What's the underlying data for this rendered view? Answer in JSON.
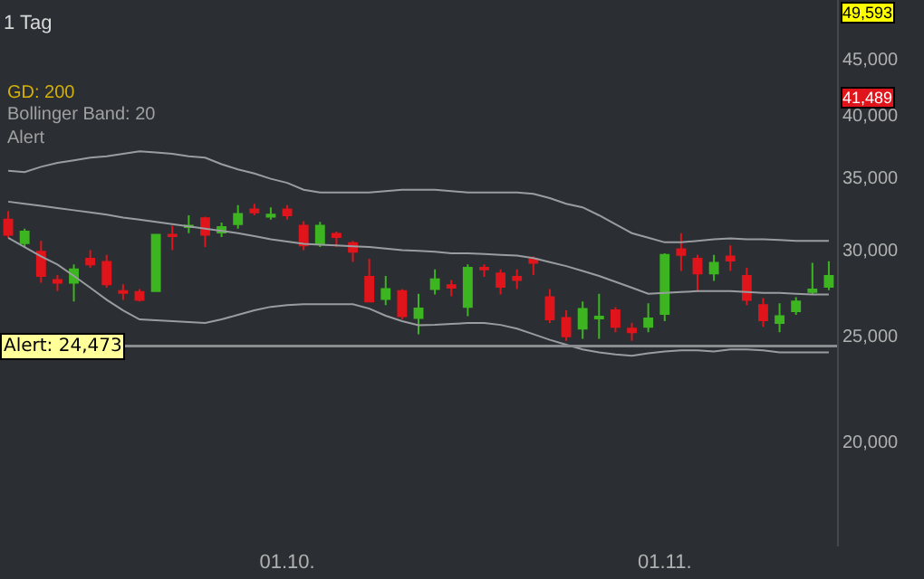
{
  "chart_data": {
    "type": "candlestick",
    "subtitle": "1 Tag",
    "categories": [
      null,
      null,
      null,
      null,
      null,
      null,
      null,
      null,
      null,
      null,
      null,
      null,
      null,
      null,
      null,
      null,
      null,
      "01.10.",
      null,
      null,
      null,
      null,
      null,
      null,
      null,
      null,
      null,
      null,
      null,
      null,
      null,
      null,
      null,
      null,
      null,
      null,
      null,
      null,
      null,
      null,
      "01.11.",
      null,
      null,
      null,
      null,
      null,
      null,
      null,
      null,
      null,
      null
    ],
    "ohlc": [
      [
        32000,
        32600,
        30800,
        31000
      ],
      [
        30450,
        31400,
        30200,
        31200
      ],
      [
        29900,
        30600,
        28000,
        28400
      ],
      [
        28160,
        28450,
        27500,
        28000
      ],
      [
        28000,
        29100,
        26900,
        28800
      ],
      [
        29450,
        30000,
        28900,
        29100
      ],
      [
        29260,
        29700,
        27700,
        27900
      ],
      [
        27500,
        27900,
        27000,
        27400
      ],
      [
        27450,
        27620,
        26900,
        27000
      ],
      [
        27500,
        31050,
        27450,
        31000
      ],
      [
        31000,
        31600,
        30000,
        30900
      ],
      [
        31500,
        32300,
        31100,
        31600
      ],
      [
        32100,
        32200,
        30200,
        31000
      ],
      [
        31150,
        31800,
        30850,
        31500
      ],
      [
        31700,
        33000,
        31400,
        32400
      ],
      [
        32700,
        33100,
        32300,
        32500
      ],
      [
        32200,
        32850,
        32000,
        32350
      ],
      [
        32700,
        33000,
        32000,
        32300
      ],
      [
        31600,
        31900,
        30000,
        30300
      ],
      [
        30400,
        31850,
        30200,
        31600
      ],
      [
        31050,
        31200,
        30200,
        30850
      ],
      [
        30450,
        30600,
        29260,
        29900
      ],
      [
        28350,
        29450,
        26850,
        26900
      ],
      [
        27050,
        28400,
        26700,
        27620
      ],
      [
        27500,
        27620,
        25900,
        26080
      ],
      [
        25980,
        27350,
        25090,
        26500
      ],
      [
        27620,
        28800,
        27300,
        28200
      ],
      [
        27850,
        28160,
        27200,
        27700
      ],
      [
        26600,
        29100,
        26080,
        28900
      ],
      [
        28900,
        29100,
        28350,
        28800
      ],
      [
        28550,
        28800,
        27300,
        27750
      ],
      [
        28350,
        28800,
        27620,
        28160
      ],
      [
        29450,
        29600,
        28450,
        29200
      ],
      [
        27150,
        27620,
        25700,
        25900
      ],
      [
        25980,
        26400,
        24750,
        24990
      ],
      [
        25400,
        26900,
        24850,
        26480
      ],
      [
        25950,
        27350,
        24850,
        26050
      ],
      [
        26400,
        26580,
        25200,
        25500
      ],
      [
        25400,
        25700,
        24750,
        25200
      ],
      [
        25500,
        26800,
        25200,
        25950
      ],
      [
        26200,
        29800,
        25800,
        29700
      ],
      [
        30050,
        31100,
        28700,
        29700
      ],
      [
        29450,
        29700,
        27450,
        28550
      ],
      [
        28550,
        29700,
        28100,
        29200
      ],
      [
        29600,
        30300,
        28700,
        29350
      ],
      [
        28400,
        28900,
        26700,
        27000
      ],
      [
        26700,
        27100,
        25500,
        25850
      ],
      [
        25700,
        26800,
        25200,
        26080
      ],
      [
        26350,
        27150,
        26150,
        26900
      ],
      [
        27450,
        29200,
        27300,
        27600
      ],
      [
        27750,
        29300,
        27550,
        28400
      ]
    ],
    "colors": [
      "#e0141b",
      "#3cb521",
      "#e0141b",
      "#e0141b",
      "#3cb521",
      "#e0141b",
      "#e0141b",
      "#e0141b",
      "#e0141b",
      "#3cb521",
      "#e0141b",
      "#3cb521",
      "#e0141b",
      "#3cb521",
      "#3cb521",
      "#e0141b",
      "#3cb521",
      "#e0141b",
      "#e0141b",
      "#3cb521",
      "#e0141b",
      "#e0141b",
      "#e0141b",
      "#3cb521",
      "#e0141b",
      "#3cb521",
      "#3cb521",
      "#e0141b",
      "#3cb521",
      "#e0141b",
      "#e0141b",
      "#e0141b",
      "#e0141b",
      "#e0141b",
      "#e0141b",
      "#3cb521",
      "#3cb521",
      "#e0141b",
      "#e0141b",
      "#3cb521",
      "#3cb521",
      "#e0141b",
      "#e0141b",
      "#3cb521",
      "#e0141b",
      "#e0141b",
      "#e0141b",
      "#3cb521",
      "#3cb521",
      "#3cb521",
      "#3cb521"
    ],
    "series": [
      {
        "type": "line",
        "color": "#9a9da0",
        "values": [
          35500,
          35400,
          35800,
          36100,
          36300,
          36500,
          36600,
          36800,
          37000,
          36900,
          36800,
          36600,
          36500,
          36000,
          35600,
          35300,
          34900,
          34600,
          34100,
          33900,
          33900,
          33900,
          33900,
          34000,
          34100,
          34100,
          34100,
          34000,
          33900,
          33900,
          33900,
          33900,
          33800,
          33500,
          33100,
          32850,
          32300,
          31700,
          31100,
          30800,
          30500,
          30500,
          30600,
          30700,
          30750,
          30700,
          30700,
          30650,
          30600,
          30600,
          30600
        ]
      },
      {
        "type": "line",
        "color": "#9a9da0",
        "values": [
          30800,
          30200,
          29600,
          29100,
          28400,
          27700,
          27000,
          26400,
          25900,
          25850,
          25800,
          25750,
          25700,
          25900,
          26150,
          26400,
          26600,
          26700,
          26750,
          26750,
          26750,
          26750,
          26500,
          26100,
          25800,
          25580,
          25600,
          25650,
          25700,
          25700,
          25600,
          25400,
          25100,
          24800,
          24550,
          24300,
          24150,
          24050,
          23980,
          24100,
          24200,
          24250,
          24250,
          24200,
          24300,
          24300,
          24250,
          24150,
          24150,
          24150,
          24150
        ]
      },
      {
        "type": "line",
        "color": "#9a9da0",
        "values": [
          33250,
          33100,
          32950,
          32800,
          32650,
          32500,
          32350,
          32150,
          32000,
          31850,
          31700,
          31550,
          31400,
          31250,
          31100,
          30900,
          30700,
          30550,
          30400,
          30350,
          30300,
          30250,
          30200,
          30100,
          30000,
          29950,
          29900,
          29800,
          29800,
          29750,
          29700,
          29650,
          29500,
          29250,
          29000,
          28700,
          28400,
          28050,
          27700,
          27350,
          27400,
          27450,
          27500,
          27500,
          27500,
          27450,
          27400,
          27400,
          27350,
          27300,
          27300
        ]
      }
    ],
    "log": true,
    "ylim": [
      16000,
      51000
    ],
    "annotations": [
      "GD: 200",
      "Bollinger Band: 20",
      "Alert",
      {
        "text": "49,593",
        "y": 49593
      },
      {
        "text": "41,489",
        "y": 41489
      }
    ],
    "yticks": [
      {
        "value": 20000,
        "label": "20,000"
      },
      {
        "value": 25000,
        "label": "25,000"
      },
      {
        "value": 30000,
        "label": "30,000"
      },
      {
        "value": 35000,
        "label": "35,000"
      },
      {
        "value": 40000,
        "label": "40,000"
      },
      {
        "value": 45000,
        "label": "45,000"
      }
    ],
    "ref_lines": [
      {
        "axis": "y",
        "value": 24473,
        "label": "Alert: 24,473",
        "color": "#8a8d90"
      }
    ]
  }
}
